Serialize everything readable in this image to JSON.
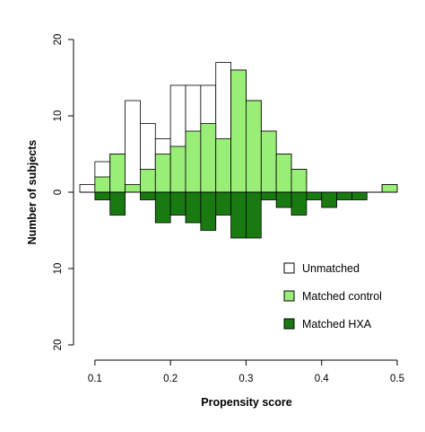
{
  "chart_data": {
    "type": "bar",
    "subtype": "mirrored-histogram",
    "xlabel": "Propensity score",
    "ylabel": "Number of subjects",
    "xlim": [
      0.08,
      0.5
    ],
    "ylim": [
      -20,
      20
    ],
    "x_ticks": [
      0.1,
      0.2,
      0.3,
      0.4,
      0.5
    ],
    "x_tick_labels": [
      "0.1",
      "0.2",
      "0.3",
      "0.4",
      "0.5"
    ],
    "y_ticks": [
      20,
      10,
      0,
      -10,
      -20
    ],
    "y_tick_labels": [
      "20",
      "10",
      "0",
      "10",
      "20"
    ],
    "bin_width": 0.02,
    "bin_starts": [
      0.08,
      0.1,
      0.12,
      0.14,
      0.16,
      0.18,
      0.2,
      0.22,
      0.24,
      0.26,
      0.28,
      0.3,
      0.32,
      0.34,
      0.36,
      0.38,
      0.4,
      0.42,
      0.44,
      0.46,
      0.48
    ],
    "legend_position": "bottom-right",
    "series": [
      {
        "name": "Unmatched",
        "color": "#ffffff",
        "stroke": "#000000",
        "direction": "up",
        "values": [
          1,
          4,
          5,
          12,
          9,
          7,
          14,
          14,
          14,
          17,
          16,
          12,
          8,
          5,
          3,
          0,
          0,
          0,
          0,
          0,
          1
        ]
      },
      {
        "name": "Matched control",
        "color": "#99ee77",
        "stroke": "#000000",
        "direction": "up",
        "values": [
          0,
          2,
          5,
          1,
          3,
          5,
          6,
          8,
          9,
          7,
          16,
          12,
          8,
          5,
          3,
          0,
          0,
          0,
          0,
          0,
          1
        ]
      },
      {
        "name": "Matched HXA",
        "color": "#1a7a12",
        "stroke": "#000000",
        "direction": "down",
        "values": [
          0,
          1,
          3,
          0,
          1,
          4,
          3,
          4,
          5,
          3,
          6,
          6,
          1,
          2,
          3,
          1,
          2,
          1,
          1,
          0,
          0
        ]
      }
    ]
  }
}
